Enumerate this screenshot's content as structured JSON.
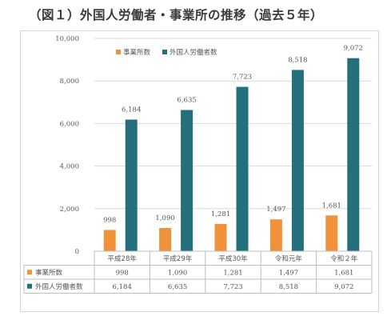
{
  "title": "（図１）外国人労働者・事業所の推移（過去５年）",
  "colors": {
    "series1": "#f0923a",
    "series2": "#246f7c",
    "grid": "#d9d9d9",
    "table_line": "#bfbfbf"
  },
  "chart_data": {
    "type": "bar",
    "title": "（図１）外国人労働者・事業所の推移（過去５年）",
    "categories": [
      "平成28年",
      "平成29年",
      "平成30年",
      "令和元年",
      "令和２年"
    ],
    "series": [
      {
        "name": "事業所数",
        "values": [
          998,
          1090,
          1281,
          1497,
          1681
        ],
        "labels": [
          "998",
          "1,090",
          "1,281",
          "1,497",
          "1,681"
        ]
      },
      {
        "name": "外国人労働者数",
        "values": [
          6184,
          6635,
          7723,
          8518,
          9072
        ],
        "labels": [
          "6,184",
          "6,635",
          "7,723",
          "8,518",
          "9,072"
        ]
      }
    ],
    "ylim": [
      0,
      10000
    ],
    "yticks": [
      "0",
      "2,000",
      "4,000",
      "6,000",
      "8,000",
      "10,000"
    ],
    "ytick_values": [
      0,
      2000,
      4000,
      6000,
      8000,
      10000
    ],
    "grid": true,
    "legend": "top",
    "data_table": true
  }
}
